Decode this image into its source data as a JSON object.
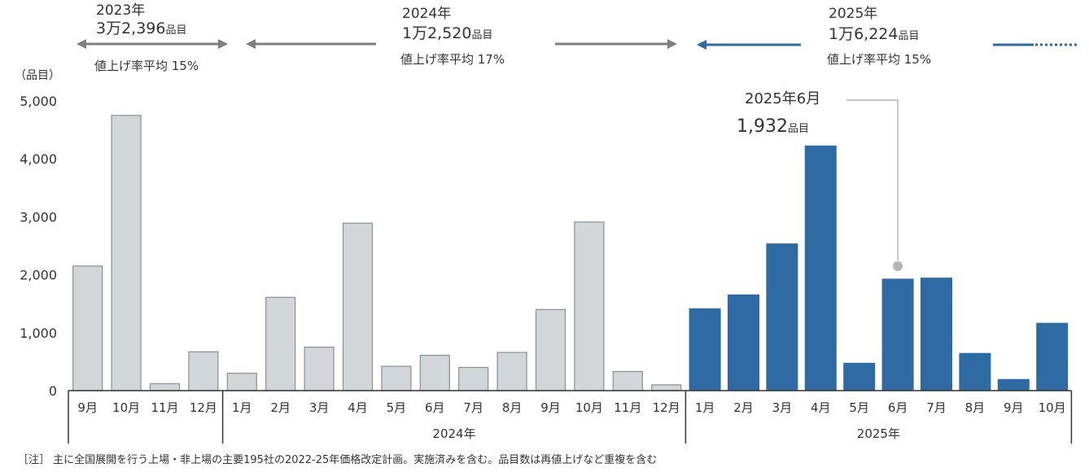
{
  "chart_data": {
    "type": "bar",
    "ylabel": "（品目）",
    "ylim": [
      0,
      5000
    ],
    "yticks": [
      {
        "value": 0,
        "label": "0"
      },
      {
        "value": 1000,
        "label": "1,000"
      },
      {
        "value": 2000,
        "label": "2,000"
      },
      {
        "value": 3000,
        "label": "3,000"
      },
      {
        "value": 4000,
        "label": "4,000"
      },
      {
        "value": 5000,
        "label": "5,000"
      }
    ],
    "categories": [
      "9月",
      "10月",
      "11月",
      "12月",
      "1月",
      "2月",
      "3月",
      "4月",
      "5月",
      "6月",
      "7月",
      "8月",
      "9月",
      "10月",
      "11月",
      "12月",
      "1月",
      "2月",
      "3月",
      "4月",
      "5月",
      "6月",
      "7月",
      "8月",
      "9月",
      "10月"
    ],
    "values": [
      2150,
      4750,
      120,
      670,
      300,
      1610,
      750,
      2890,
      420,
      610,
      400,
      660,
      1400,
      2910,
      330,
      100,
      1420,
      1660,
      2540,
      4230,
      480,
      1932,
      1950,
      650,
      200,
      1170
    ],
    "year_of_bar": [
      2023,
      2023,
      2023,
      2023,
      2024,
      2024,
      2024,
      2024,
      2024,
      2024,
      2024,
      2024,
      2024,
      2024,
      2024,
      2024,
      2025,
      2025,
      2025,
      2025,
      2025,
      2025,
      2025,
      2025,
      2025,
      2025
    ],
    "groups": [
      {
        "year": 2023,
        "label": "",
        "summary_year": "2023年",
        "summary_count": "3万2,396",
        "summary_unit": "品目",
        "summary_rate": "値上げ率平均 15%"
      },
      {
        "year": 2024,
        "label": "2024年",
        "summary_year": "2024年",
        "summary_count": "1万2,520",
        "summary_unit": "品目",
        "summary_rate": "値上げ率平均  17%"
      },
      {
        "year": 2025,
        "label": "2025年",
        "summary_year": "2025年",
        "summary_count": "1万6,224",
        "summary_unit": "品目",
        "summary_rate": "値上げ率平均  15%"
      }
    ],
    "annotation": {
      "bar_index": 21,
      "label": "2025年6月",
      "value_text": "1,932",
      "unit": "品目"
    },
    "colors": {
      "past": "#d2d6d9",
      "past_stroke": "#8a8f94",
      "current": "#2e6aa3",
      "arrow_gray": "#7f7f7f"
    },
    "grid": false
  },
  "note": "［注］ 主に全国展開を行う上場・非上場の主要195社の2022-25年価格改定計画。実施済みを含む。品目数は再値上げなど重複を含む"
}
